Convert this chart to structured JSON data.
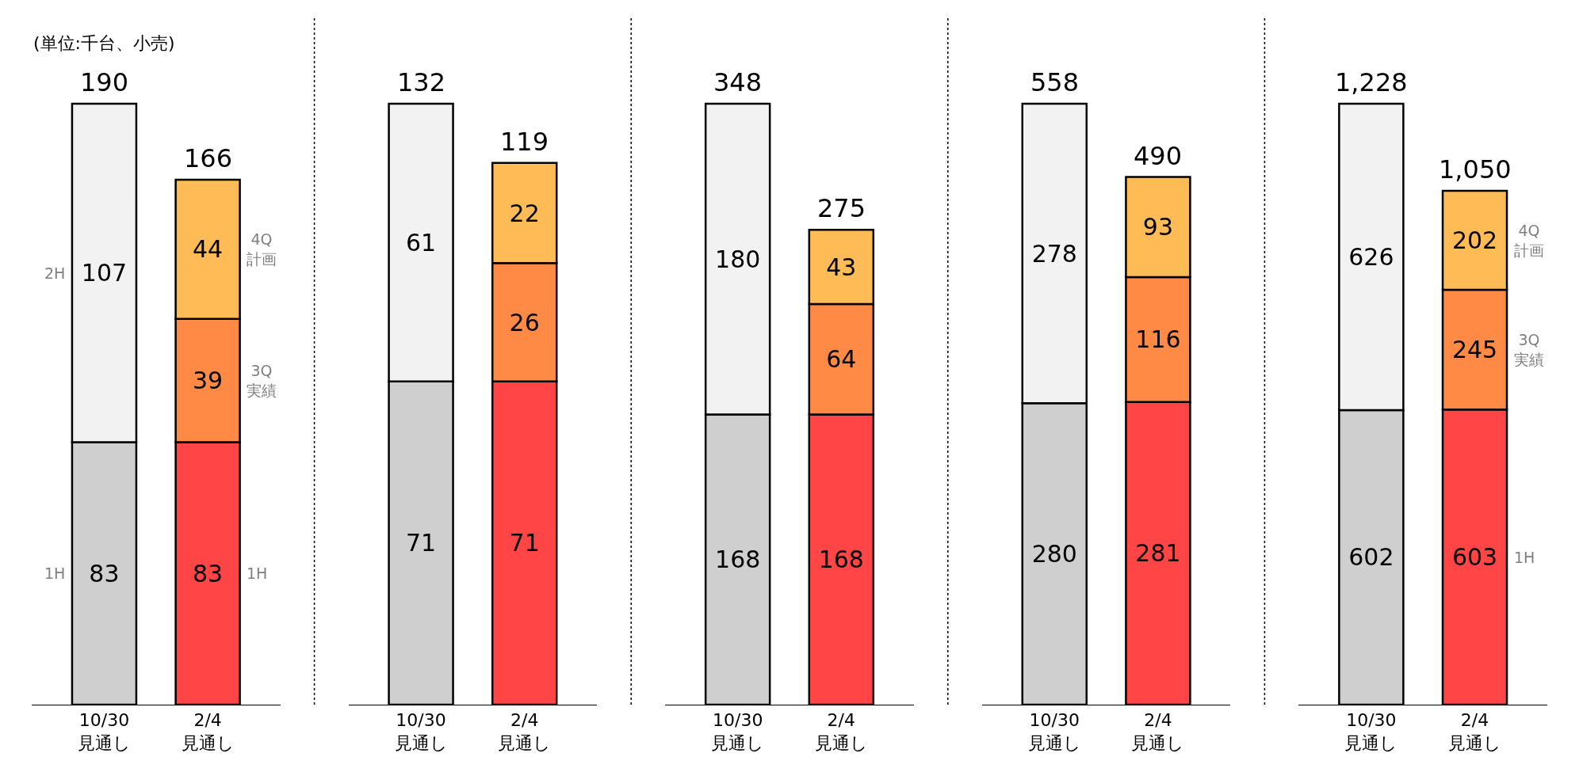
{
  "chart_data": [
    {
      "type": "bar",
      "stacked": true,
      "data_labels": true,
      "categories": [
        "10/30\n見通し",
        "2/4\n見通し"
      ],
      "totals": [
        "190",
        "166"
      ],
      "annotations": [
        "(単位:千台、小売)"
      ],
      "series": [
        {
          "name": "1H",
          "colors": [
            "#cfcfcf",
            "#ff4545"
          ],
          "values": [
            83,
            83
          ]
        },
        {
          "name": "2H",
          "color": "#f2f2f2",
          "values": [
            107,
            null
          ]
        },
        {
          "name": "3Q\n実績",
          "color": "#ff8a45",
          "values": [
            null,
            39
          ]
        },
        {
          "name": "4Q\n計画",
          "color": "#ffbb55",
          "values": [
            null,
            44
          ]
        }
      ]
    },
    {
      "type": "bar",
      "stacked": true,
      "data_labels": true,
      "categories": [
        "10/30\n見通し",
        "2/4\n見通し"
      ],
      "totals": [
        "132",
        "119"
      ],
      "series": [
        {
          "colors": [
            "#cfcfcf",
            "#ff4545"
          ],
          "values": [
            71,
            71
          ]
        },
        {
          "color": "#f2f2f2",
          "values": [
            61,
            null
          ]
        },
        {
          "color": "#ff8a45",
          "values": [
            null,
            26
          ]
        },
        {
          "color": "#ffbb55",
          "values": [
            null,
            22
          ]
        }
      ]
    },
    {
      "type": "bar",
      "stacked": true,
      "data_labels": true,
      "categories": [
        "10/30\n見通し",
        "2/4\n見通し"
      ],
      "totals": [
        "348",
        "275"
      ],
      "series": [
        {
          "colors": [
            "#cfcfcf",
            "#ff4545"
          ],
          "values": [
            168,
            168
          ]
        },
        {
          "color": "#f2f2f2",
          "values": [
            180,
            null
          ]
        },
        {
          "color": "#ff8a45",
          "values": [
            null,
            64
          ]
        },
        {
          "color": "#ffbb55",
          "values": [
            null,
            43
          ]
        }
      ]
    },
    {
      "type": "bar",
      "stacked": true,
      "data_labels": true,
      "categories": [
        "10/30\n見通し",
        "2/4\n見通し"
      ],
      "totals": [
        "558",
        "490"
      ],
      "series": [
        {
          "colors": [
            "#cfcfcf",
            "#ff4545"
          ],
          "values": [
            280,
            281
          ]
        },
        {
          "color": "#f2f2f2",
          "values": [
            278,
            null
          ]
        },
        {
          "color": "#ff8a45",
          "values": [
            null,
            116
          ]
        },
        {
          "color": "#ffbb55",
          "values": [
            null,
            93
          ]
        }
      ]
    },
    {
      "type": "bar",
      "stacked": true,
      "data_labels": true,
      "categories": [
        "10/30\n見通し",
        "2/4\n見通し"
      ],
      "totals": [
        "1,228",
        "1,050"
      ],
      "series": [
        {
          "name": "1H",
          "colors": [
            "#cfcfcf",
            "#ff4545"
          ],
          "values": [
            602,
            603
          ]
        },
        {
          "color": "#f2f2f2",
          "values": [
            626,
            null
          ]
        },
        {
          "name": "3Q\n実績",
          "color": "#ff8a45",
          "values": [
            null,
            245
          ]
        },
        {
          "name": "4Q\n計画",
          "color": "#ffbb55",
          "values": [
            null,
            202
          ]
        }
      ]
    }
  ]
}
